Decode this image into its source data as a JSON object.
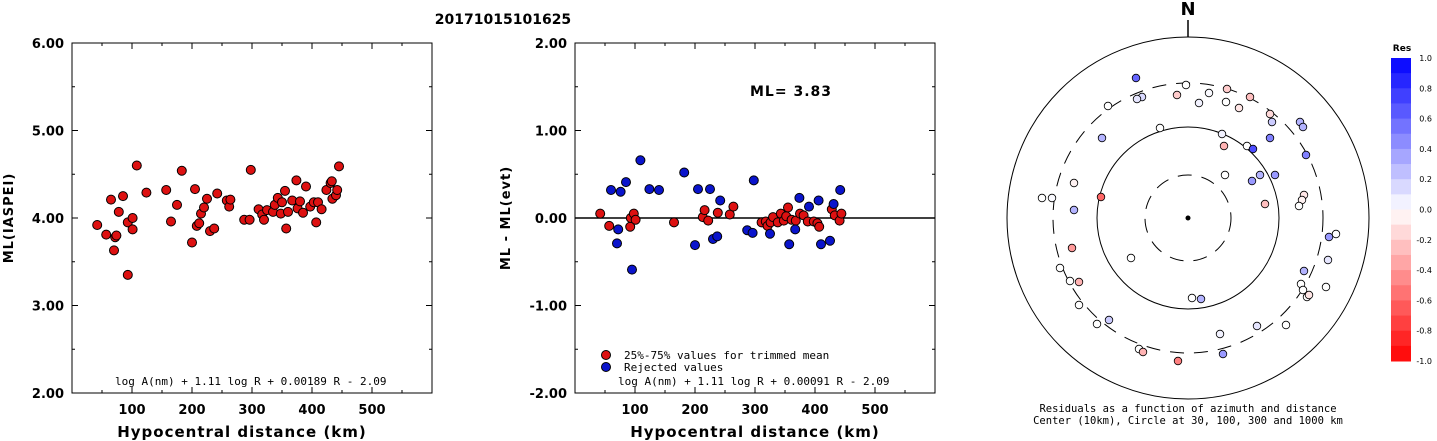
{
  "title": "20171015101625",
  "colors": {
    "accepted": "#dd1111",
    "rejected": "#0a14cc",
    "axis": "#000000"
  },
  "chart_data": [
    {
      "type": "scatter",
      "xlabel": "Hypocentral distance (km)",
      "ylabel": "ML(IASPEI)",
      "xlim": [
        0,
        600
      ],
      "ylim": [
        2.0,
        6.0
      ],
      "x_ticks": [
        "100",
        "200",
        "300",
        "400",
        "500"
      ],
      "y_ticks": [
        "2.00",
        "3.00",
        "4.00",
        "5.00",
        "6.00"
      ],
      "formula": "log A(nm) + 1.11 log R + 0.00189 R - 2.09",
      "series": [
        {
          "points": [
            [
              42,
              3.92
            ],
            [
              57,
              3.81
            ],
            [
              65,
              4.21
            ],
            [
              70,
              3.63
            ],
            [
              72,
              3.78
            ],
            [
              74,
              3.8
            ],
            [
              78,
              4.07
            ],
            [
              85,
              4.25
            ],
            [
              93,
              3.35
            ],
            [
              93,
              3.95
            ],
            [
              101,
              3.87
            ],
            [
              101,
              4.0
            ],
            [
              108,
              4.6
            ],
            [
              124,
              4.29
            ],
            [
              157,
              4.32
            ],
            [
              165,
              3.96
            ],
            [
              175,
              4.15
            ],
            [
              183,
              4.54
            ],
            [
              200,
              3.72
            ],
            [
              205,
              4.33
            ],
            [
              208,
              3.91
            ],
            [
              212,
              3.94
            ],
            [
              215,
              4.05
            ],
            [
              220,
              4.12
            ],
            [
              225,
              4.22
            ],
            [
              230,
              3.85
            ],
            [
              237,
              3.88
            ],
            [
              242,
              4.28
            ],
            [
              258,
              4.2
            ],
            [
              262,
              4.13
            ],
            [
              264,
              4.21
            ],
            [
              287,
              3.98
            ],
            [
              296,
              3.98
            ],
            [
              298,
              4.55
            ],
            [
              311,
              4.1
            ],
            [
              317,
              4.04
            ],
            [
              320,
              3.98
            ],
            [
              325,
              4.09
            ],
            [
              335,
              4.07
            ],
            [
              338,
              4.15
            ],
            [
              343,
              4.23
            ],
            [
              348,
              4.05
            ],
            [
              350,
              4.18
            ],
            [
              355,
              4.31
            ],
            [
              357,
              3.88
            ],
            [
              360,
              4.07
            ],
            [
              367,
              4.2
            ],
            [
              374,
              4.43
            ],
            [
              376,
              4.11
            ],
            [
              380,
              4.19
            ],
            [
              385,
              4.06
            ],
            [
              390,
              4.36
            ],
            [
              397,
              4.13
            ],
            [
              403,
              4.18
            ],
            [
              407,
              3.95
            ],
            [
              410,
              4.18
            ],
            [
              416,
              4.1
            ],
            [
              424,
              4.32
            ],
            [
              431,
              4.4
            ],
            [
              433,
              4.42
            ],
            [
              434,
              4.22
            ],
            [
              440,
              4.26
            ],
            [
              442,
              4.32
            ],
            [
              445,
              4.59
            ]
          ]
        }
      ]
    },
    {
      "type": "scatter",
      "xlabel": "Hypocentral distance (km)",
      "ylabel": "ML - ML(evt)",
      "xlim": [
        0,
        600
      ],
      "ylim": [
        -2.0,
        2.0
      ],
      "x_ticks": [
        "100",
        "200",
        "300",
        "400",
        "500"
      ],
      "y_ticks": [
        "-2.00",
        "-1.00",
        "0.00",
        "1.00",
        "2.00"
      ],
      "annotation": "ML= 3.83",
      "formula": "log A(nm) + 1.11 log R + 0.00091 R - 2.09",
      "legend": [
        "25%-75% values for trimmed mean",
        "Rejected values"
      ],
      "series": [
        {
          "name": "25%-75% values for trimmed mean",
          "points": [
            [
              42,
              0.05
            ],
            [
              57,
              -0.09
            ],
            [
              92,
              -0.1
            ],
            [
              93,
              0.0
            ],
            [
              98,
              0.05
            ],
            [
              101,
              -0.02
            ],
            [
              165,
              -0.05
            ],
            [
              213,
              0.01
            ],
            [
              216,
              0.09
            ],
            [
              222,
              -0.03
            ],
            [
              238,
              0.06
            ],
            [
              258,
              0.04
            ],
            [
              264,
              0.13
            ],
            [
              311,
              -0.05
            ],
            [
              318,
              -0.04
            ],
            [
              321,
              -0.09
            ],
            [
              326,
              -0.05
            ],
            [
              330,
              0.01
            ],
            [
              338,
              -0.05
            ],
            [
              343,
              0.05
            ],
            [
              348,
              -0.03
            ],
            [
              352,
              0.02
            ],
            [
              355,
              0.12
            ],
            [
              361,
              -0.02
            ],
            [
              368,
              -0.03
            ],
            [
              375,
              0.05
            ],
            [
              381,
              0.03
            ],
            [
              388,
              -0.04
            ],
            [
              398,
              -0.04
            ],
            [
              404,
              -0.06
            ],
            [
              407,
              -0.1
            ],
            [
              428,
              0.1
            ],
            [
              433,
              0.03
            ],
            [
              441,
              -0.03
            ],
            [
              444,
              0.05
            ]
          ]
        },
        {
          "name": "Rejected values",
          "points": [
            [
              60,
              0.32
            ],
            [
              70,
              -0.29
            ],
            [
              72,
              -0.13
            ],
            [
              76,
              0.3
            ],
            [
              85,
              0.41
            ],
            [
              95,
              -0.59
            ],
            [
              109,
              0.66
            ],
            [
              124,
              0.33
            ],
            [
              140,
              0.32
            ],
            [
              182,
              0.52
            ],
            [
              200,
              -0.31
            ],
            [
              205,
              0.33
            ],
            [
              225,
              0.33
            ],
            [
              230,
              -0.24
            ],
            [
              237,
              -0.21
            ],
            [
              242,
              0.2
            ],
            [
              287,
              -0.14
            ],
            [
              296,
              -0.17
            ],
            [
              298,
              0.43
            ],
            [
              325,
              -0.18
            ],
            [
              357,
              -0.3
            ],
            [
              367,
              -0.13
            ],
            [
              374,
              0.23
            ],
            [
              390,
              0.13
            ],
            [
              406,
              0.2
            ],
            [
              410,
              -0.3
            ],
            [
              425,
              -0.26
            ],
            [
              431,
              0.16
            ],
            [
              442,
              0.32
            ]
          ]
        }
      ]
    },
    {
      "type": "scatter",
      "title": "N",
      "caption_line1": "Residuals as a function of azimuth and distance",
      "caption_line2": "Center (10km), Circle at 30, 100, 300 and 1000 km",
      "colorbar": {
        "label": "Res",
        "range": [
          -1.0,
          1.0
        ],
        "ticks": [
          "1.0",
          "0.8",
          "0.6",
          "0.4",
          "0.2",
          "0.0",
          "-0.2",
          "-0.4",
          "-0.6",
          "-0.8",
          "-1.0"
        ]
      },
      "rings_km": [
        30,
        100,
        300,
        1000
      ],
      "stations": [
        [
          1186,
          85,
          0.0
        ],
        [
          1209,
          93,
          0.02
        ],
        [
          1227,
          89,
          -0.2
        ],
        [
          1250,
          97,
          -0.25
        ],
        [
          1136,
          78,
          0.6
        ],
        [
          1177,
          95,
          -0.2
        ],
        [
          1142,
          97,
          0.15
        ],
        [
          1137,
          99,
          0.1
        ],
        [
          1108,
          106,
          0.0
        ],
        [
          1199,
          103,
          0.05
        ],
        [
          1226,
          102,
          0.0
        ],
        [
          1239,
          108,
          -0.1
        ],
        [
          1270,
          114,
          -0.15
        ],
        [
          1272,
          122,
          0.2
        ],
        [
          1160,
          128,
          0.0
        ],
        [
          1222,
          134,
          0.05
        ],
        [
          1102,
          138,
          0.3
        ],
        [
          1224,
          146,
          -0.3
        ],
        [
          1247,
          146,
          0.0
        ],
        [
          1253,
          149,
          0.7
        ],
        [
          1270,
          138,
          0.5
        ],
        [
          1300,
          122,
          0.3
        ],
        [
          1303,
          127,
          0.3
        ],
        [
          1306,
          155,
          0.5
        ],
        [
          1225,
          175,
          0.0
        ],
        [
          1252,
          181,
          0.4
        ],
        [
          1260,
          175,
          0.3
        ],
        [
          1275,
          175,
          0.4
        ],
        [
          1265,
          204,
          -0.25
        ],
        [
          1304,
          195,
          -0.1
        ],
        [
          1302,
          200,
          -0.05
        ],
        [
          1074,
          183,
          -0.05
        ],
        [
          1042,
          198,
          0.0
        ],
        [
          1052,
          198,
          0.02
        ],
        [
          1101,
          197,
          -0.6
        ],
        [
          1074,
          210,
          0.3
        ],
        [
          1072,
          248,
          -0.4
        ],
        [
          1060,
          268,
          0.0
        ],
        [
          1070,
          281,
          0.0
        ],
        [
          1079,
          282,
          -0.3
        ],
        [
          1079,
          305,
          0.0
        ],
        [
          1097,
          324,
          0.0
        ],
        [
          1109,
          320,
          0.2
        ],
        [
          1131,
          258,
          0.0
        ],
        [
          1192,
          298,
          0.0
        ],
        [
          1201,
          299,
          0.3
        ],
        [
          1139,
          349,
          0.0
        ],
        [
          1143,
          352,
          -0.3
        ],
        [
          1178,
          361,
          -0.5
        ],
        [
          1220,
          334,
          0.05
        ],
        [
          1223,
          354,
          0.4
        ],
        [
          1257,
          326,
          0.1
        ],
        [
          1304,
          271,
          0.3
        ],
        [
          1307,
          297,
          0.0
        ],
        [
          1326,
          287,
          0.0
        ],
        [
          1328,
          260,
          0.1
        ],
        [
          1336,
          234,
          0.0
        ],
        [
          1329,
          237,
          0.4
        ],
        [
          1301,
          284,
          0.0
        ],
        [
          1303,
          290,
          0.0
        ],
        [
          1309,
          295,
          -0.1
        ],
        [
          1286,
          325,
          0.0
        ],
        [
          1299,
          206,
          0.0
        ]
      ]
    }
  ]
}
